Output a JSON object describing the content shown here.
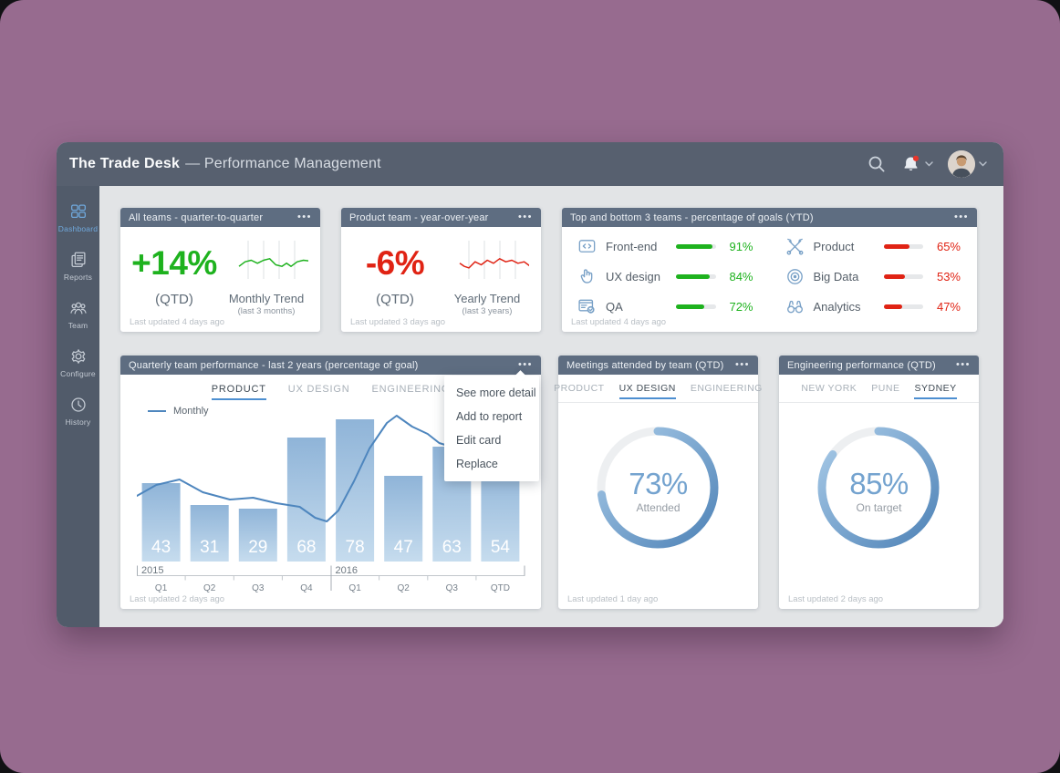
{
  "window": {
    "title_bold": "The Trade Desk",
    "title_rest": "— Performance Management",
    "header_icons": [
      "search-icon",
      "bell-icon",
      "avatar"
    ]
  },
  "sidebar": {
    "items": [
      {
        "label": "Dashboard",
        "icon": "dashboard-icon",
        "active": true
      },
      {
        "label": "Reports",
        "icon": "reports-icon",
        "active": false
      },
      {
        "label": "Team",
        "icon": "team-icon",
        "active": false
      },
      {
        "label": "Configure",
        "icon": "gear-icon",
        "active": false
      },
      {
        "label": "History",
        "icon": "clock-icon",
        "active": false
      }
    ]
  },
  "cards": {
    "all_teams": {
      "header": "All teams - quarter-to-quarter",
      "value": "+14%",
      "value_label": "(QTD)",
      "trend_title": "Monthly Trend",
      "trend_sub": "(last 3 months)",
      "footer": "Last updated 4 days ago",
      "accent": "#1EB21E"
    },
    "product_team": {
      "header": "Product team - year-over-year",
      "value": "-6%",
      "value_label": "(QTD)",
      "trend_title": "Yearly Trend",
      "trend_sub": "(last 3 years)",
      "footer": "Last updated 3 days ago",
      "accent": "#E02314"
    },
    "top_bottom": {
      "header": "Top and bottom 3 teams - percentage of goals (YTD)",
      "footer": "Last updated 4 days ago"
    },
    "quarterly": {
      "header": "Quarterly team performance - last 2 years (percentage of goal)",
      "tabs": [
        {
          "label": "PRODUCT",
          "active": true
        },
        {
          "label": "UX DESIGN",
          "active": false
        },
        {
          "label": "ENGINEERING",
          "active": false
        }
      ],
      "legend": "Monthly",
      "menu": [
        "See more detail",
        "Add to report",
        "Edit card",
        "Replace"
      ],
      "footer": "Last updated 2 days ago"
    },
    "meetings": {
      "header": "Meetings attended by team (QTD)",
      "tabs": [
        {
          "label": "PRODUCT",
          "active": false
        },
        {
          "label": "UX DESIGN",
          "active": true
        },
        {
          "label": "ENGINEERING",
          "active": false
        }
      ],
      "value_text": "73%",
      "center_label": "Attended",
      "footer": "Last updated 1 day ago"
    },
    "engineering": {
      "header": "Engineering performance (QTD)",
      "tabs": [
        {
          "label": "NEW YORK",
          "active": false
        },
        {
          "label": "PUNE",
          "active": false
        },
        {
          "label": "SYDNEY",
          "active": true
        }
      ],
      "value_text": "85%",
      "center_label": "On target",
      "footer": "Last updated 2 days ago"
    }
  },
  "chart_data": {
    "quarterly_bars": {
      "type": "bar",
      "title": "Quarterly team performance - last 2 years (percentage of goal)",
      "categories": [
        "Q1",
        "Q2",
        "Q3",
        "Q4",
        "Q1",
        "Q2",
        "Q3",
        "QTD"
      ],
      "year_groups": [
        {
          "label": "2015",
          "start_index": 0
        },
        {
          "label": "2016",
          "start_index": 4
        }
      ],
      "values": [
        43,
        31,
        29,
        68,
        78,
        47,
        63,
        54
      ],
      "ylim": [
        0,
        100
      ],
      "bar_gradient": [
        "#8FB4D8",
        "#C6DCEE"
      ],
      "overlay_line": {
        "name": "Monthly",
        "color": "#4E86BE",
        "points": [
          [
            0,
            36
          ],
          [
            0.05,
            42
          ],
          [
            0.11,
            45
          ],
          [
            0.17,
            38
          ],
          [
            0.24,
            34
          ],
          [
            0.3,
            35
          ],
          [
            0.36,
            32
          ],
          [
            0.42,
            30
          ],
          [
            0.46,
            24
          ],
          [
            0.49,
            22
          ],
          [
            0.52,
            28
          ],
          [
            0.56,
            44
          ],
          [
            0.6,
            62
          ],
          [
            0.645,
            76
          ],
          [
            0.67,
            80
          ],
          [
            0.71,
            74
          ],
          [
            0.75,
            70
          ],
          [
            0.78,
            65
          ],
          [
            0.81,
            63
          ],
          [
            0.84,
            66
          ],
          [
            0.875,
            69
          ],
          [
            0.91,
            71
          ],
          [
            0.95,
            72
          ],
          [
            1,
            69
          ]
        ]
      }
    },
    "goals_progress": {
      "type": "bar-h",
      "title": "Top and bottom 3 teams - percentage of goals (YTD)",
      "top_color": "#1EB21E",
      "bottom_color": "#E02314",
      "top": [
        {
          "icon": "code-icon",
          "label": "Front-end",
          "value": 91
        },
        {
          "icon": "pointer-icon",
          "label": "UX design",
          "value": 84
        },
        {
          "icon": "qa-icon",
          "label": "QA",
          "value": 72
        }
      ],
      "bottom": [
        {
          "icon": "tools-icon",
          "label": "Product",
          "value": 65
        },
        {
          "icon": "target-icon",
          "label": "Big Data",
          "value": 53
        },
        {
          "icon": "binoculars-icon",
          "label": "Analytics",
          "value": 47
        }
      ]
    },
    "meetings_donut": {
      "type": "pie",
      "value": 73,
      "label": "Attended",
      "colors": [
        "#A9CBE8",
        "#4F83B7"
      ],
      "track": "#EDEFF1"
    },
    "engineering_donut": {
      "type": "pie",
      "value": 85,
      "label": "On target",
      "colors": [
        "#A9CBE8",
        "#4F83B7"
      ],
      "track": "#EDEFF1"
    },
    "all_teams_spark": {
      "type": "line",
      "color": "#1EB21E",
      "points": [
        [
          0,
          30
        ],
        [
          8,
          24
        ],
        [
          16,
          22
        ],
        [
          24,
          26
        ],
        [
          32,
          22
        ],
        [
          40,
          20
        ],
        [
          48,
          28
        ],
        [
          56,
          30
        ],
        [
          62,
          26
        ],
        [
          68,
          30
        ],
        [
          76,
          24
        ],
        [
          84,
          22
        ],
        [
          92,
          23
        ],
        [
          100,
          18
        ]
      ]
    },
    "product_team_spark": {
      "type": "line",
      "color": "#E02314",
      "points": [
        [
          0,
          26
        ],
        [
          6,
          30
        ],
        [
          12,
          32
        ],
        [
          20,
          24
        ],
        [
          28,
          28
        ],
        [
          36,
          22
        ],
        [
          44,
          26
        ],
        [
          52,
          20
        ],
        [
          60,
          24
        ],
        [
          68,
          22
        ],
        [
          76,
          26
        ],
        [
          84,
          24
        ],
        [
          92,
          30
        ],
        [
          100,
          28
        ]
      ]
    }
  }
}
